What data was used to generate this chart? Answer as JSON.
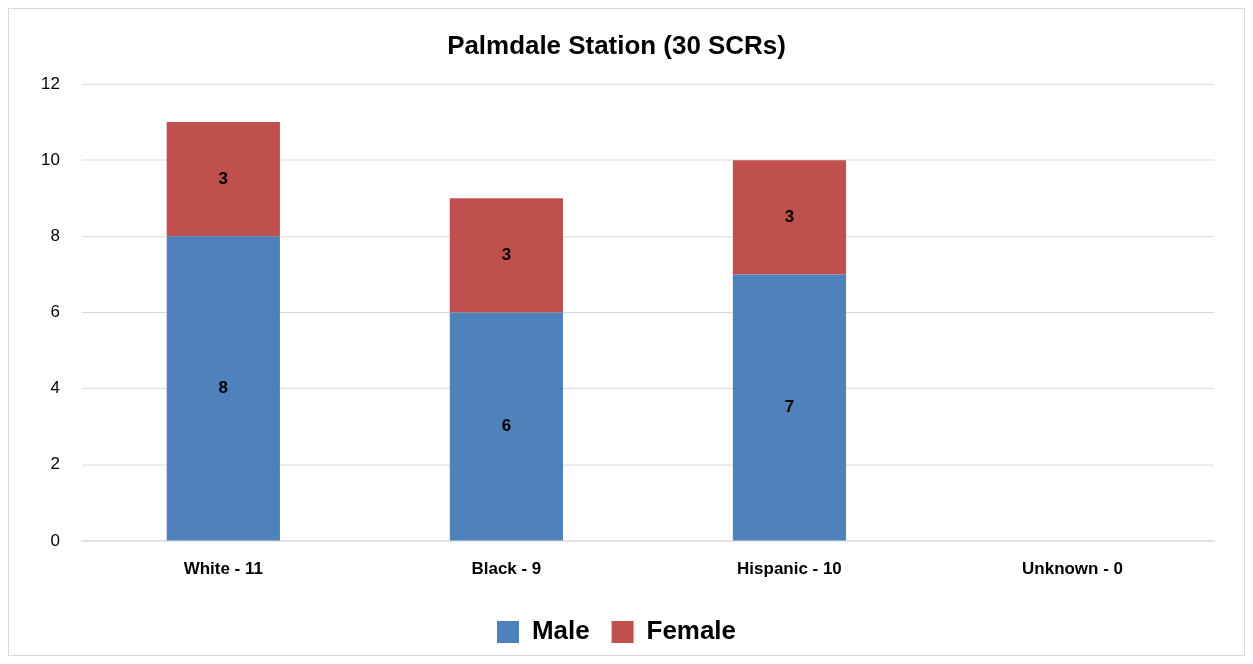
{
  "chart_data": {
    "type": "bar",
    "title": "Palmdale Station (30 SCRs)",
    "categories": [
      "White - 11",
      "Black - 9",
      "Hispanic - 10",
      "Unknown - 0"
    ],
    "series": [
      {
        "name": "Male",
        "color": "#4f81bd",
        "values": [
          8,
          6,
          7,
          0
        ],
        "value_labels": [
          "8",
          "6",
          "7",
          null
        ]
      },
      {
        "name": "Female",
        "color": "#c0504d",
        "values": [
          3,
          3,
          3,
          0
        ],
        "value_labels": [
          "3",
          "3",
          "3",
          null
        ]
      }
    ],
    "stacked": true,
    "ylim": [
      0,
      12
    ],
    "yticks": [
      0,
      2,
      4,
      6,
      8,
      10,
      12
    ],
    "grid": "y",
    "legend": "bottom"
  }
}
